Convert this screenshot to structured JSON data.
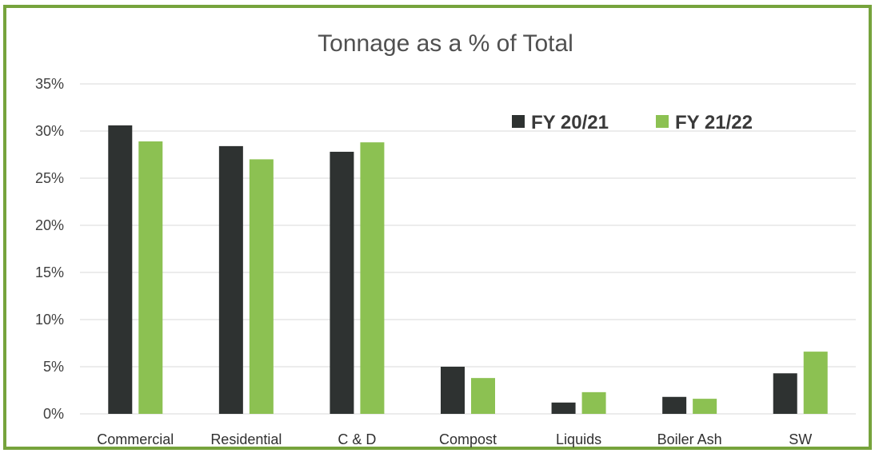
{
  "chart_data": {
    "type": "bar",
    "title": "Tonnage as a % of Total",
    "xlabel": "",
    "ylabel": "",
    "categories": [
      "Commercial",
      "Residential",
      "C & D",
      "Compost",
      "Liquids",
      "Boiler Ash",
      "SW"
    ],
    "series": [
      {
        "name": "FY 20/21",
        "color": "#2e3231",
        "values": [
          30.6,
          28.4,
          27.8,
          5.0,
          1.2,
          1.8,
          4.3
        ]
      },
      {
        "name": "FY 21/22",
        "color": "#8cc152",
        "values": [
          28.9,
          27.0,
          28.8,
          3.8,
          2.3,
          1.6,
          6.6
        ]
      }
    ],
    "ylim": [
      0,
      35
    ],
    "yticks": [
      0,
      5,
      10,
      15,
      20,
      25,
      30,
      35
    ],
    "ytick_labels": [
      "0%",
      "5%",
      "10%",
      "15%",
      "20%",
      "25%",
      "30%",
      "35%"
    ],
    "grid": true,
    "legend_position": "top-right"
  },
  "colors": {
    "frame_border": "#76a33c",
    "gridline": "#e6e6e6"
  }
}
